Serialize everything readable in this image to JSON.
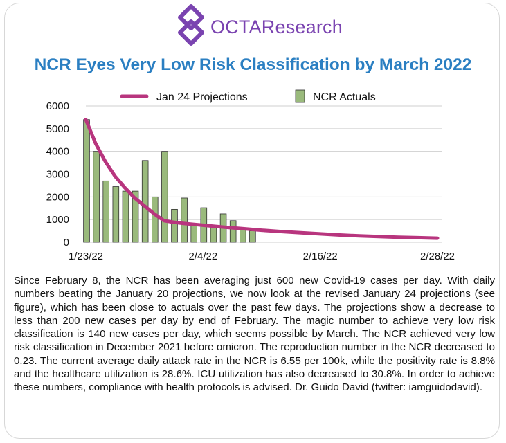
{
  "logo": {
    "text": "OCTAResearch",
    "icon": "octa-logo-icon",
    "color": "#7a43b0"
  },
  "title": "NCR Eyes Very Low Risk Classification by March 2022",
  "chart_data": {
    "type": "bar",
    "legend_position": "top",
    "grid": true,
    "ylim": [
      0,
      6000
    ],
    "yticks": [
      "0",
      "1000",
      "2000",
      "3000",
      "4000",
      "5000",
      "6000"
    ],
    "xrange_days": [
      0,
      36
    ],
    "xticks": [
      {
        "label": "1/23/22",
        "day": 0
      },
      {
        "label": "2/4/22",
        "day": 12
      },
      {
        "label": "2/16/22",
        "day": 24
      },
      {
        "label": "2/28/22",
        "day": 36
      }
    ],
    "series": [
      {
        "name": "NCR Actuals",
        "kind": "bar",
        "color": "#9aba7c",
        "days": [
          0,
          1,
          2,
          3,
          4,
          5,
          6,
          7,
          8,
          9,
          10,
          11,
          12,
          13,
          14,
          15,
          16,
          17
        ],
        "values": [
          5400,
          4000,
          2700,
          2450,
          2250,
          2250,
          3600,
          2000,
          4000,
          1450,
          1950,
          800,
          1520,
          700,
          1250,
          950,
          600,
          500
        ]
      },
      {
        "name": "Jan 24 Projections",
        "kind": "line",
        "color": "#b8357e",
        "days": [
          0,
          1,
          2,
          3,
          4,
          5,
          6,
          7,
          8,
          9,
          10,
          11,
          12,
          14,
          16,
          18,
          20,
          22,
          24,
          26,
          28,
          30,
          32,
          34,
          36
        ],
        "values": [
          5400,
          4350,
          3550,
          2900,
          2400,
          1950,
          1600,
          1250,
          950,
          880,
          830,
          790,
          750,
          670,
          600,
          530,
          470,
          420,
          370,
          320,
          280,
          250,
          220,
          200,
          180
        ]
      }
    ]
  },
  "paragraph": "Since February 8, the NCR has been averaging just 600 new Covid-19 cases per day. With daily numbers beating the January 20 projections, we now look at the revised January 24 projections (see figure), which has been close to actuals over the past few days. The projections show a decrease to less than 200 new cases per day by end of February. The magic number to achieve very low risk classification is 140 new cases per day, which seems possible by March. The NCR achieved very low risk classification in December 2021 before omicron. The reproduction number in the NCR decreased to 0.23. The current average daily attack rate in the NCR is 6.55 per 100k, while the positivity rate is 8.8% and the healthcare utilization is 28.6%. ICU utilization has also decreased to 30.8%. In order to achieve these numbers, compliance with health protocols is advised. Dr. Guido David (twitter: iamguidodavid)."
}
